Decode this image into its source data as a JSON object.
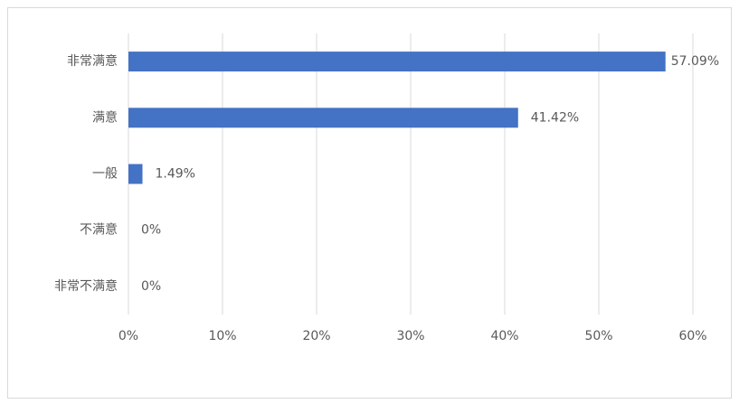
{
  "chart_data": {
    "type": "hbar",
    "categories": [
      "非常满意",
      "满意",
      "一般",
      "不满意",
      "非常不满意"
    ],
    "values": [
      57.09,
      41.42,
      1.49,
      0,
      0
    ],
    "value_labels": [
      "57.09%",
      "41.42%",
      "1.49%",
      "0%",
      "0%"
    ],
    "color": "#4472c4",
    "xlim": [
      0,
      60
    ],
    "xticks": [
      {
        "value": 0,
        "label": "0%"
      },
      {
        "value": 10,
        "label": "10%"
      },
      {
        "value": 20,
        "label": "20%"
      },
      {
        "value": 30,
        "label": "30%"
      },
      {
        "value": 40,
        "label": "40%"
      },
      {
        "value": 50,
        "label": "50%"
      },
      {
        "value": 60,
        "label": "60%"
      }
    ],
    "grid": true
  }
}
